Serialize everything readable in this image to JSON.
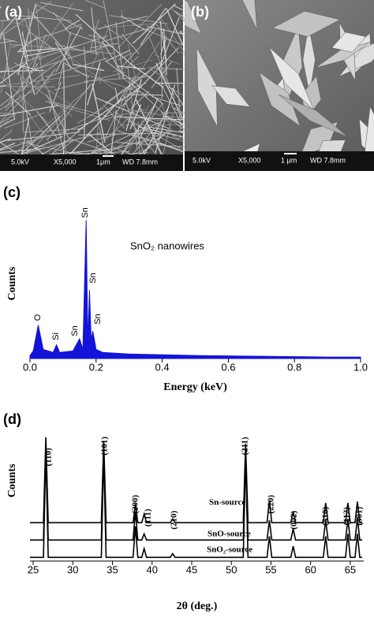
{
  "panels": [
    {
      "label": "(a)",
      "info": [
        "5.0kV",
        "X5,000",
        "1μm",
        "WD 7.8mm"
      ]
    },
    {
      "label": "(b)",
      "info": [
        "5.0kV",
        "X5,000",
        "1 μm",
        "WD 7.8mm"
      ]
    }
  ],
  "chart_data": [
    {
      "type": "area",
      "panel_label": "(c)",
      "xlabel": "Energy (keV)",
      "ylabel": "Counts",
      "annotation": "SnO₂ nanowires",
      "peak_labels": [
        "O",
        "Si",
        "Sn",
        "Sn",
        "Sn",
        "Sn"
      ],
      "color": "#1414d8",
      "x": [
        0,
        0.01,
        0.025,
        0.04,
        0.07,
        0.08,
        0.09,
        0.13,
        0.15,
        0.16,
        0.17,
        0.175,
        0.18,
        0.185,
        0.19,
        0.2,
        0.22,
        0.3,
        0.5,
        0.7,
        0.9,
        1.0
      ],
      "values": [
        2,
        5,
        22,
        6,
        4,
        9,
        4,
        5,
        13,
        6,
        91,
        10,
        45,
        12,
        18,
        6,
        4,
        3,
        2,
        1.5,
        1,
        1
      ],
      "xlim": [
        0,
        1
      ],
      "ylim": [
        0,
        100
      ],
      "xticks": [
        {
          "value": 0,
          "label": "0.0"
        },
        0.2,
        0.4,
        0.6,
        0.8,
        {
          "value": 1,
          "label": "1.0"
        }
      ]
    },
    {
      "type": "line",
      "panel_label": "(d)",
      "xlabel": "2θ (deg.)",
      "ylabel": "Counts",
      "reflections": [
        "(110)",
        "(101)",
        "(200)",
        "(111)",
        "(210)",
        "(211)",
        "(220)",
        "(002)",
        "(310)",
        "(112)",
        "(301)"
      ],
      "x": [
        24.6,
        26.3,
        26.6,
        26.9,
        33.6,
        33.9,
        34.2,
        37.6,
        37.9,
        38.2,
        38.7,
        39.0,
        39.3,
        42.3,
        42.6,
        42.9,
        51.5,
        51.8,
        52.1,
        54.5,
        54.8,
        55.1,
        57.5,
        57.8,
        58.1,
        61.6,
        61.9,
        62.2,
        64.4,
        64.7,
        65.0,
        65.6,
        65.9,
        66.2,
        66.5
      ],
      "series": [
        {
          "name": "Sn-source",
          "color": "#000000",
          "values": [
            31,
            31,
            100,
            31,
            31,
            97,
            31,
            31,
            46,
            31,
            31,
            38,
            31,
            31,
            34,
            31,
            31,
            95,
            31,
            31,
            49,
            31,
            31,
            40,
            31,
            31,
            47,
            31,
            31,
            47,
            31,
            31,
            48,
            31,
            31
          ]
        },
        {
          "name": "SnO-source",
          "color": "#000000",
          "values": [
            17,
            17,
            95,
            17,
            17,
            92,
            17,
            17,
            40,
            17,
            17,
            22,
            17,
            17,
            17,
            17,
            17,
            90,
            17,
            17,
            33,
            17,
            17,
            26,
            17,
            17,
            33,
            17,
            17,
            34,
            17,
            17,
            35,
            17,
            17
          ]
        },
        {
          "name": "SnO₂-source",
          "color": "#000000",
          "values": [
            3,
            3,
            90,
            3,
            3,
            88,
            3,
            3,
            28,
            3,
            3,
            10,
            3,
            3,
            6,
            3,
            3,
            85,
            3,
            3,
            20,
            3,
            3,
            12,
            3,
            3,
            20,
            3,
            3,
            22,
            3,
            3,
            22,
            3,
            3
          ]
        }
      ],
      "xlim": [
        24.6,
        66.7
      ],
      "ylim": [
        0,
        100
      ],
      "xticks": [
        25,
        30,
        35,
        40,
        45,
        50,
        55,
        60,
        65
      ]
    }
  ]
}
